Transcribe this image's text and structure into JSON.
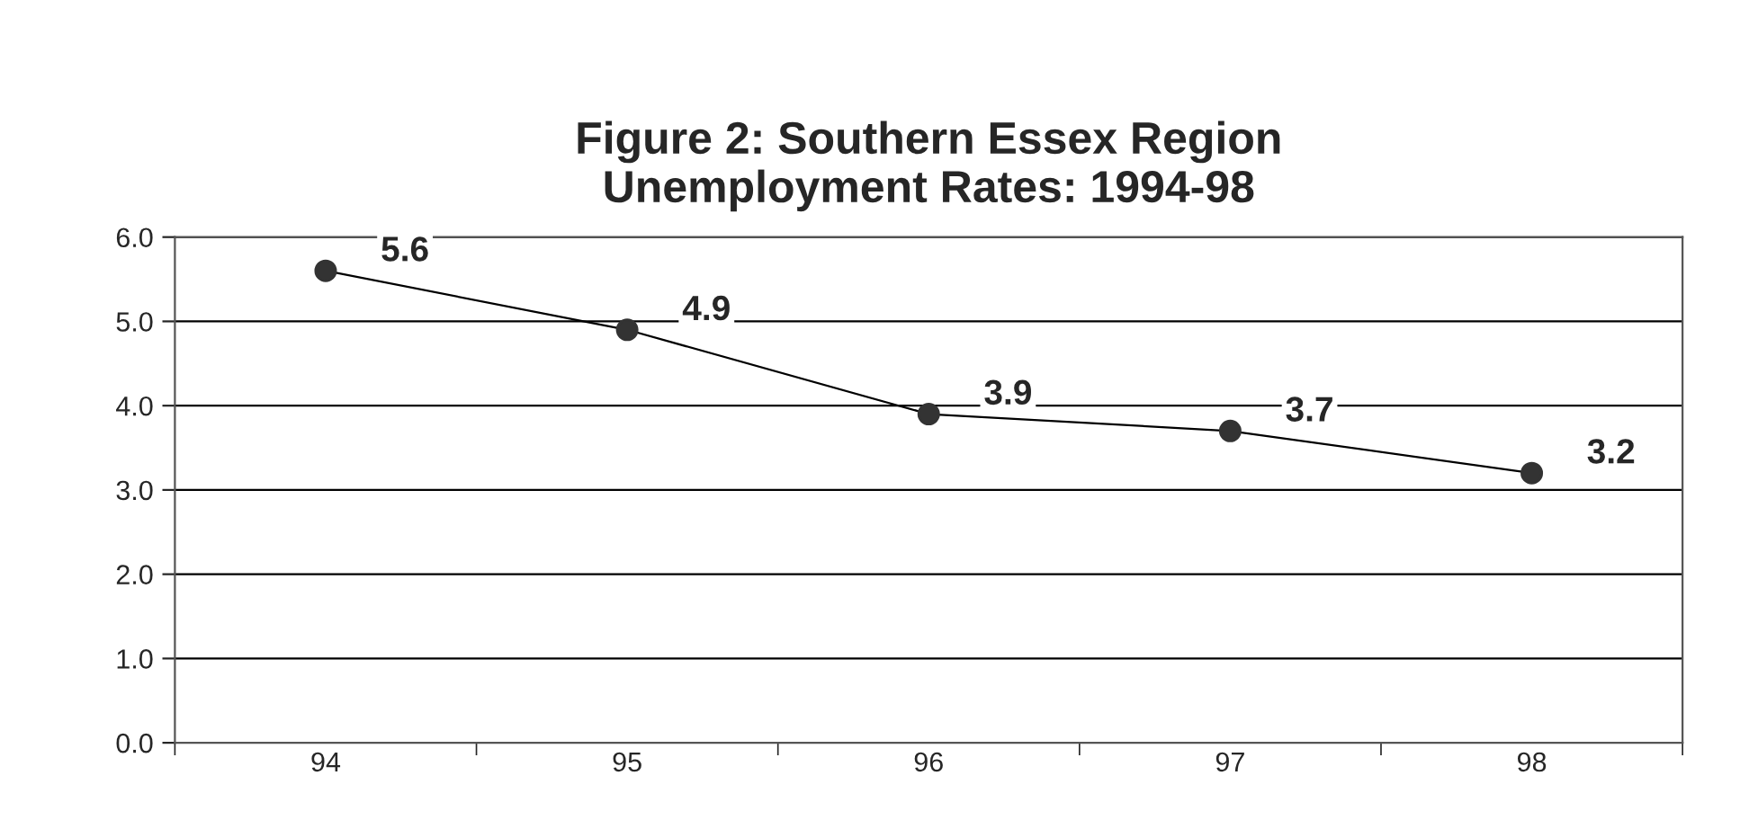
{
  "chart_data": {
    "type": "line",
    "title": "Figure 2: Southern Essex Region\nUnemployment Rates: 1994-98",
    "categories": [
      "94",
      "95",
      "96",
      "97",
      "98"
    ],
    "values": [
      5.6,
      4.9,
      3.9,
      3.7,
      3.2
    ],
    "color": "#000000",
    "ylim": [
      0,
      6
    ],
    "yticks": [
      {
        "value": 0,
        "label": "0.0"
      },
      {
        "value": 1,
        "label": "1.0"
      },
      {
        "value": 2,
        "label": "2.0"
      },
      {
        "value": 3,
        "label": "3.0"
      },
      {
        "value": 4,
        "label": "4.0"
      },
      {
        "value": 5,
        "label": "5.0"
      },
      {
        "value": 6,
        "label": "6.0"
      }
    ],
    "grid": "y",
    "marker": "circle",
    "line_style": "solid",
    "data_labels": true,
    "legend": false
  }
}
